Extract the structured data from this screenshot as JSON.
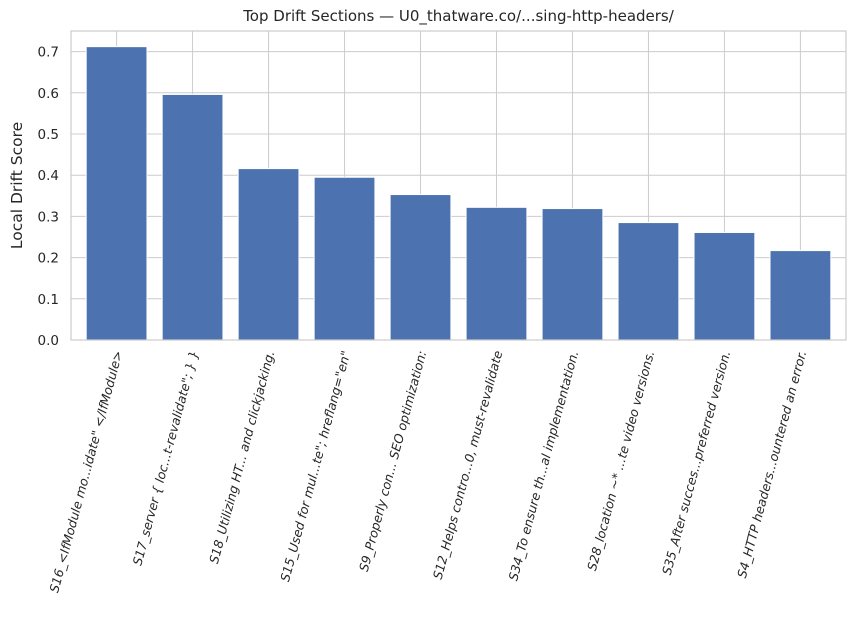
{
  "chart_data": {
    "type": "bar",
    "title": "Top Drift Sections — U0_thatware.co/...sing-http-headers/",
    "xlabel": "",
    "ylabel": "Local Drift Score",
    "ylim": [
      0,
      0.75
    ],
    "yticks": [
      "0.0",
      "0.1",
      "0.2",
      "0.3",
      "0.4",
      "0.5",
      "0.6",
      "0.7"
    ],
    "grid": true,
    "legend": "none",
    "bar_color": "#4c72b0",
    "categories": [
      "S16_<IfModule mo...idate\" </IfModule>",
      "S17_server { loc...t-revalidate\"; } }",
      "S18_Utilizing HT... and clickjacking.",
      "S15_Used for mul...te\"; hreflang=\"en\"",
      "S9_Properly con... SEO optimization:",
      "S12_Helps contro...0, must-revalidate",
      "S34_To ensure th...al implementation.",
      "S28_location ~* ...te video versions.",
      "S35_After succes...preferred version.",
      "S4_HTTP headers...ountered an error."
    ],
    "values": [
      0.712,
      0.596,
      0.416,
      0.395,
      0.353,
      0.322,
      0.319,
      0.285,
      0.261,
      0.217
    ]
  }
}
